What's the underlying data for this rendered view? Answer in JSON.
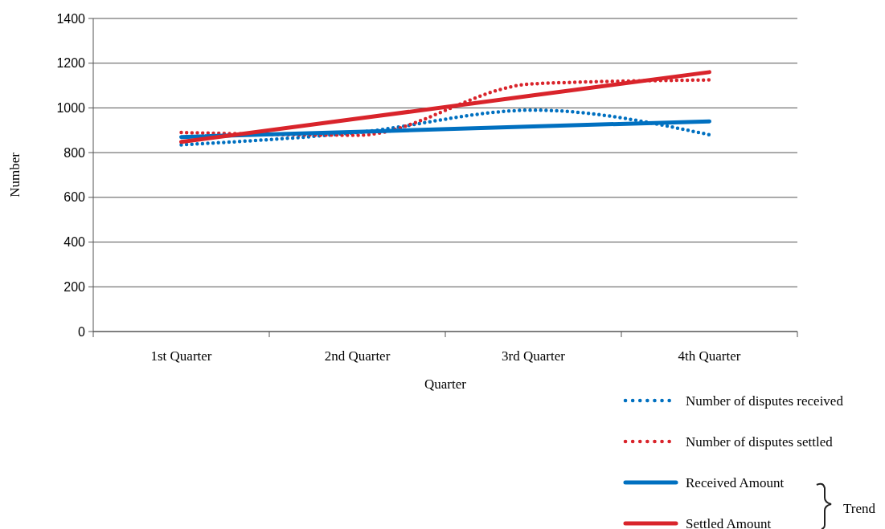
{
  "chart_data": {
    "type": "line",
    "xlabel": "Quarter",
    "ylabel": "Number",
    "categories": [
      "1st Quarter",
      "2nd Quarter",
      "3rd Quarter",
      "4th Quarter"
    ],
    "series": [
      {
        "name": "Number of disputes received",
        "color": "#0070c0",
        "values": [
          835,
          890,
          990,
          880
        ],
        "line_style": "dotted"
      },
      {
        "name": "Number of disputes settled",
        "color": "#d9242b",
        "values": [
          890,
          878,
          1108,
          1125
        ],
        "line_style": "dotted"
      },
      {
        "name": "Received Amount",
        "color": "#0070c0",
        "values": [
          870,
          893,
          917,
          940
        ],
        "line_style": "solid"
      },
      {
        "name": "Settled Amount",
        "color": "#d9242b",
        "values": [
          848,
          952,
          1056,
          1160
        ],
        "line_style": "solid"
      }
    ],
    "ylim": [
      0,
      1400
    ],
    "yticks": [
      0,
      200,
      400,
      600,
      800,
      1000,
      1200,
      1400
    ],
    "grid": "y",
    "legend": "bottom right",
    "annotations": [
      "Trend"
    ]
  }
}
